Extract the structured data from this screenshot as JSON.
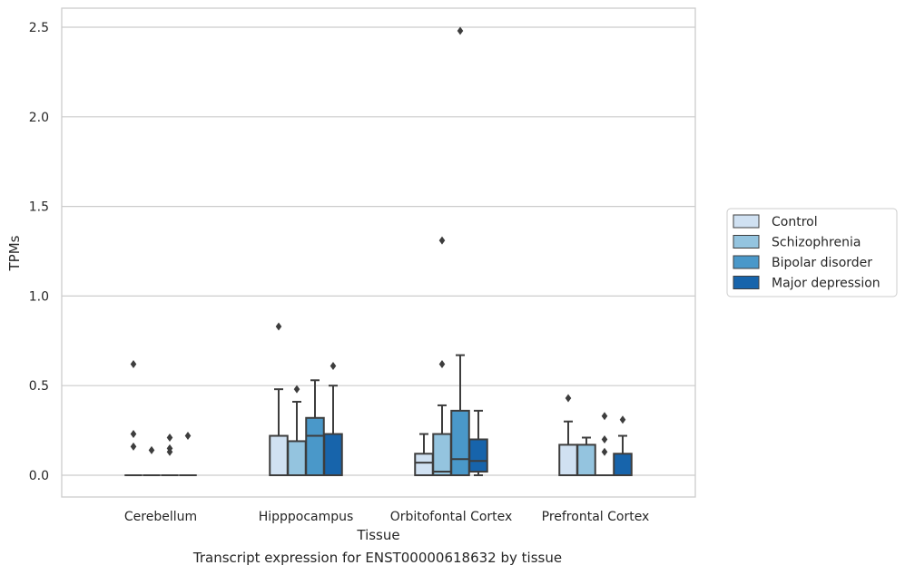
{
  "caption": "Transcript expression for ENST00000618632 by tissue",
  "chart_data": {
    "type": "box",
    "xlabel": "Tissue",
    "ylabel": "TPMs",
    "ylim": [
      -0.12,
      2.62
    ],
    "yticks": [
      0.0,
      0.5,
      1.0,
      1.5,
      2.0,
      2.5
    ],
    "ytick_labels": [
      "0.0",
      "0.5",
      "1.0",
      "1.5",
      "2.0",
      "2.5"
    ],
    "grid": true,
    "legend_position": "right",
    "categories": [
      "Cerebellum",
      "Hipppocampus",
      "Orbitofontal Cortex",
      "Prefrontal Cortex"
    ],
    "series": [
      {
        "name": "Control",
        "color": "#d0e1f2",
        "boxes": [
          {
            "min": 0.0,
            "q1": 0.0,
            "median": 0.0,
            "q3": 0.0,
            "max": 0.0,
            "outliers": [
              0.62,
              0.23,
              0.16
            ]
          },
          {
            "min": 0.0,
            "q1": 0.0,
            "median": 0.0,
            "q3": 0.22,
            "max": 0.48,
            "outliers": [
              0.83
            ]
          },
          {
            "min": 0.0,
            "q1": 0.0,
            "median": 0.07,
            "q3": 0.12,
            "max": 0.23,
            "outliers": []
          },
          {
            "min": 0.0,
            "q1": 0.0,
            "median": 0.0,
            "q3": 0.17,
            "max": 0.3,
            "outliers": [
              0.43
            ]
          }
        ]
      },
      {
        "name": "Schizophrenia",
        "color": "#94c4df",
        "boxes": [
          {
            "min": 0.0,
            "q1": 0.0,
            "median": 0.0,
            "q3": 0.0,
            "max": 0.0,
            "outliers": [
              0.14
            ]
          },
          {
            "min": 0.0,
            "q1": 0.0,
            "median": 0.0,
            "q3": 0.19,
            "max": 0.41,
            "outliers": [
              0.48
            ]
          },
          {
            "min": 0.0,
            "q1": 0.0,
            "median": 0.02,
            "q3": 0.23,
            "max": 0.39,
            "outliers": [
              1.31,
              0.62
            ]
          },
          {
            "min": 0.0,
            "q1": 0.0,
            "median": 0.0,
            "q3": 0.17,
            "max": 0.21,
            "outliers": []
          }
        ]
      },
      {
        "name": "Bipolar disorder",
        "color": "#4a98c9",
        "boxes": [
          {
            "min": 0.0,
            "q1": 0.0,
            "median": 0.0,
            "q3": 0.0,
            "max": 0.0,
            "outliers": [
              0.21,
              0.15,
              0.13
            ]
          },
          {
            "min": 0.0,
            "q1": 0.0,
            "median": 0.22,
            "q3": 0.32,
            "max": 0.53,
            "outliers": []
          },
          {
            "min": 0.0,
            "q1": 0.0,
            "median": 0.09,
            "q3": 0.36,
            "max": 0.67,
            "outliers": [
              2.48
            ]
          },
          {
            "min": 0.0,
            "q1": 0.0,
            "median": 0.0,
            "q3": 0.0,
            "max": 0.0,
            "outliers": [
              0.33,
              0.2,
              0.13
            ]
          }
        ]
      },
      {
        "name": "Major depression",
        "color": "#1764ab",
        "boxes": [
          {
            "min": 0.0,
            "q1": 0.0,
            "median": 0.0,
            "q3": 0.0,
            "max": 0.0,
            "outliers": [
              0.22
            ]
          },
          {
            "min": 0.0,
            "q1": 0.0,
            "median": 0.0,
            "q3": 0.23,
            "max": 0.5,
            "outliers": [
              0.61
            ]
          },
          {
            "min": 0.0,
            "q1": 0.02,
            "median": 0.08,
            "q3": 0.2,
            "max": 0.36,
            "outliers": []
          },
          {
            "min": 0.0,
            "q1": 0.0,
            "median": 0.0,
            "q3": 0.12,
            "max": 0.22,
            "outliers": [
              0.31
            ]
          }
        ]
      }
    ]
  }
}
